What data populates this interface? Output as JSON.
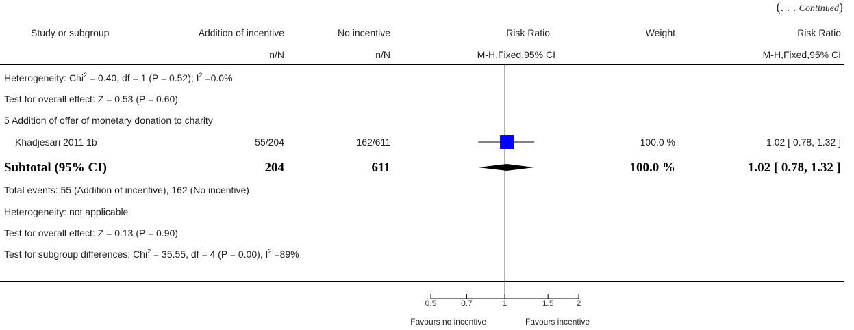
{
  "continued": {
    "prefix": "(. . . ",
    "label": "Continued",
    "suffix": ")"
  },
  "header": {
    "study": "Study or subgroup",
    "group1": "Addition of incentive",
    "group2": "No incentive",
    "rr": "Risk Ratio",
    "weight": "Weight",
    "rr2": "Risk Ratio",
    "sub1": "n/N",
    "sub2": "n/N",
    "method": "M-H,Fixed,95% CI",
    "method2": "M-H,Fixed,95% CI"
  },
  "notes_top": {
    "heterogeneity": {
      "pre": "Heterogeneity: Chi",
      "sup": "2",
      "mid": " = 0.40, df = 1 (P = 0.52); I",
      "sup2": "2",
      "post": " =0.0%"
    },
    "overall": "Test for overall effect: Z = 0.53 (P = 0.60)"
  },
  "subgroup_title": "5 Addition of offer of monetary donation to charity",
  "study_row": {
    "name": "Khadjesari 2011 1b",
    "g1": "55/204",
    "g2": "162/611",
    "weight": "100.0 %",
    "ci": "1.02 [ 0.78, 1.32 ]"
  },
  "subtotal": {
    "label": "Subtotal (95% CI)",
    "g1": "204",
    "g2": "611",
    "weight": "100.0 %",
    "ci": "1.02 [ 0.78, 1.32 ]"
  },
  "notes_bottom": {
    "events": "Total events: 55 (Addition of incentive), 162 (No incentive)",
    "heterogeneity": "Heterogeneity: not applicable",
    "overall": "Test for overall effect: Z = 0.13 (P = 0.90)",
    "subgroup_diff": {
      "pre": "Test for subgroup differences: Chi",
      "sup": "2",
      "mid": " = 35.55, df = 4 (P = 0.00), I",
      "sup2": "2",
      "post": " =89%"
    }
  },
  "axis": {
    "left_label": "Favours no incentive",
    "right_label": "Favours incentive"
  },
  "chart_data": {
    "type": "forest",
    "scale": "log",
    "xlim": [
      0.5,
      2
    ],
    "ticks": [
      {
        "v": 0.5,
        "label": "0.5"
      },
      {
        "v": 0.7,
        "label": "0.7"
      },
      {
        "v": 1,
        "label": "1"
      },
      {
        "v": 1.5,
        "label": "1.5"
      },
      {
        "v": 2,
        "label": "2"
      }
    ],
    "null_value": 1,
    "studies": [
      {
        "name": "Khadjesari 2011 1b",
        "rr": 1.02,
        "lo": 0.78,
        "hi": 1.32,
        "weight": 100.0
      }
    ],
    "subtotal": {
      "rr": 1.02,
      "lo": 0.78,
      "hi": 1.32
    }
  },
  "colors": {
    "marker": "#0000ff",
    "diamond": "#000000"
  }
}
